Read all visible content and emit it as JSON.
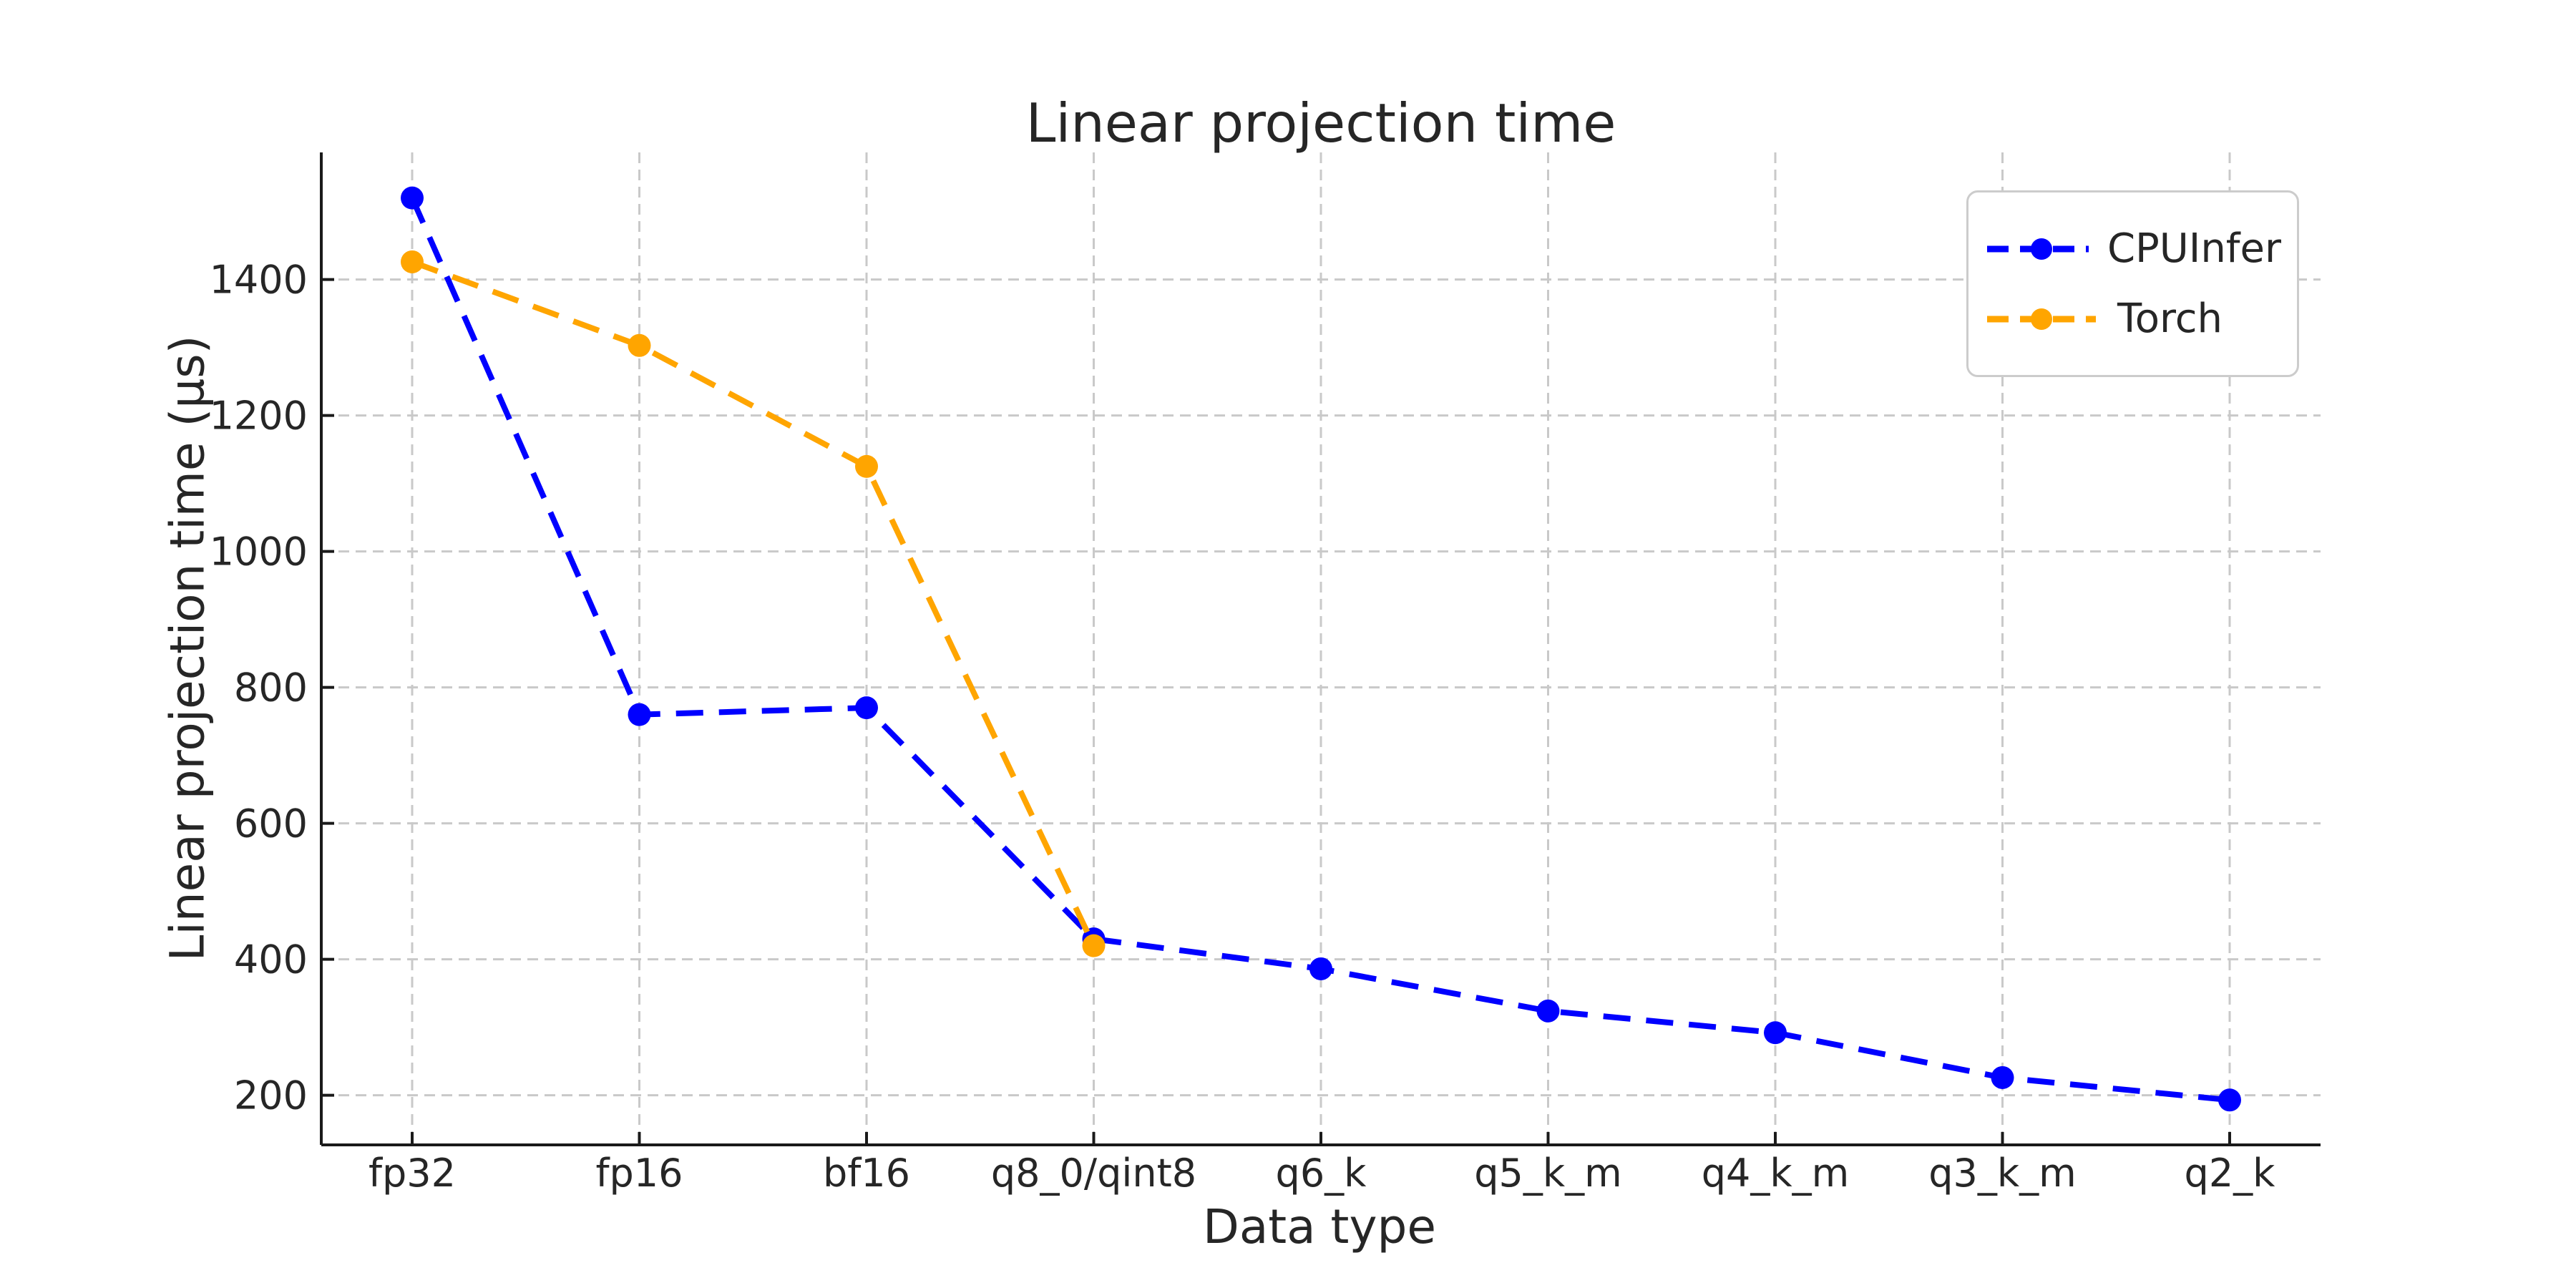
{
  "page": {
    "background_color": "#ffffff",
    "text_color": "#262626",
    "spine_color": "#1a1a1a",
    "grid_color": "#c9c9c9"
  },
  "chart_data": {
    "type": "line",
    "title": "Linear projection time",
    "xlabel": "Data type",
    "ylabel": "Linear projection time (µs)",
    "categories": [
      "fp32",
      "fp16",
      "bf16",
      "q8_0/qint8",
      "q6_k",
      "q5_k_m",
      "q4_k_m",
      "q3_k_m",
      "q2_k"
    ],
    "series": [
      {
        "name": "CPUInfer",
        "color": "#0000ff",
        "values": [
          1520,
          760,
          770,
          430,
          386,
          324,
          292,
          226,
          193
        ]
      },
      {
        "name": "Torch",
        "color": "#ffa500",
        "values": [
          1426,
          1303,
          1125,
          420
        ]
      }
    ],
    "yticks": [
      200,
      400,
      600,
      800,
      1000,
      1200,
      1400
    ],
    "ylim": [
      127,
      1587
    ],
    "line_style": "dashed",
    "marker": "circle",
    "grid": "dashed both axes",
    "legend_position": "upper right",
    "legend_entries": [
      "CPUInfer",
      "Torch"
    ]
  }
}
